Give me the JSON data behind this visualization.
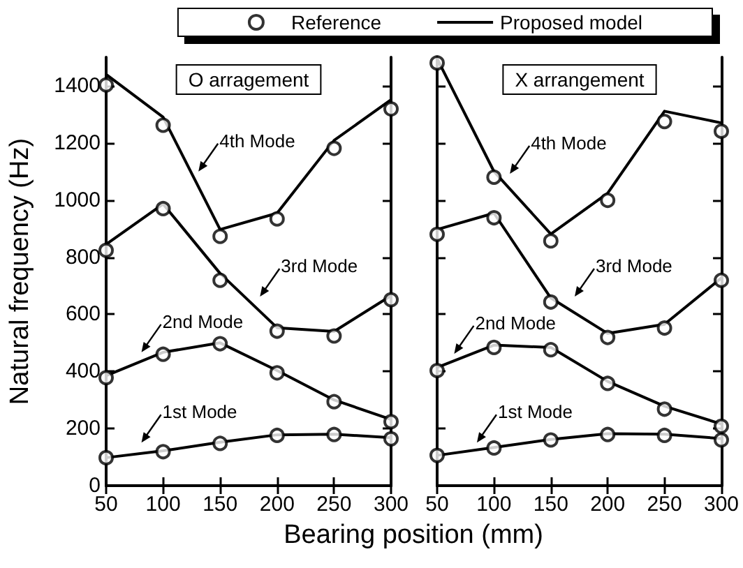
{
  "chart_data": [
    {
      "type": "line",
      "xlabel": "Bearing position (mm)",
      "ylabel": "Natural frequency (Hz)",
      "x": [
        50,
        100,
        150,
        200,
        250,
        300
      ],
      "xlim": [
        50,
        300
      ],
      "xticks": [
        50,
        100,
        150,
        200,
        250,
        300
      ],
      "ylim": [
        0,
        1500
      ],
      "yticks": [
        0,
        200,
        400,
        600,
        800,
        1000,
        1200,
        1400
      ],
      "grid": false,
      "legend": "top right",
      "annotations": [
        "O arragement",
        "4th Mode",
        "3rd Mode",
        "2nd Mode",
        "1st Mode"
      ],
      "series": [
        {
          "name": "Reference",
          "type": "scatter",
          "marker": "circle",
          "color": "#000000",
          "values": [
            98,
            119,
            148,
            176,
            179,
            164
          ]
        },
        {
          "name": "Proposed model",
          "marker": "none",
          "line_style": "solid",
          "color": "#000000",
          "values": [
            98,
            122,
            152,
            178,
            180,
            168
          ]
        },
        {
          "type": "scatter",
          "marker": "circle",
          "color": "#000000",
          "values": [
            378,
            460,
            497,
            395,
            294,
            224
          ]
        },
        {
          "marker": "none",
          "line_style": "solid",
          "color": "#000000",
          "values": [
            385,
            467,
            500,
            403,
            300,
            232
          ]
        },
        {
          "type": "scatter",
          "marker": "circle",
          "color": "#000000",
          "values": [
            824,
            970,
            719,
            541,
            524,
            651
          ]
        },
        {
          "marker": "none",
          "line_style": "solid",
          "color": "#000000",
          "values": [
            845,
            986,
            743,
            553,
            540,
            665
          ]
        },
        {
          "type": "scatter",
          "marker": "circle",
          "color": "#000000",
          "values": [
            1403,
            1262,
            873,
            934,
            1181,
            1319
          ]
        },
        {
          "marker": "none",
          "line_style": "solid",
          "color": "#000000",
          "values": [
            1440,
            1290,
            897,
            954,
            1209,
            1351
          ]
        }
      ]
    },
    {
      "type": "line",
      "x": [
        50,
        100,
        150,
        200,
        250,
        300
      ],
      "xlim": [
        50,
        300
      ],
      "xticks": [
        50,
        100,
        150,
        200,
        250,
        300
      ],
      "ylim": [
        0,
        1500
      ],
      "yticks": [
        0,
        200,
        400,
        600,
        800,
        1000,
        1200,
        1400
      ],
      "grid": false,
      "tick_labels": "x",
      "annotations": [
        "X arrangement",
        "4th Mode",
        "3rd Mode",
        "2nd Mode",
        "1st Mode"
      ],
      "series": [
        {
          "type": "scatter",
          "marker": "circle",
          "color": "#000000",
          "values": [
            106,
            132,
            160,
            179,
            176,
            160
          ]
        },
        {
          "marker": "none",
          "line_style": "solid",
          "color": "#000000",
          "values": [
            106,
            134,
            162,
            182,
            180,
            165
          ]
        },
        {
          "type": "scatter",
          "marker": "circle",
          "color": "#000000",
          "values": [
            403,
            484,
            476,
            358,
            268,
            208
          ]
        },
        {
          "marker": "none",
          "line_style": "solid",
          "color": "#000000",
          "values": [
            414,
            492,
            484,
            365,
            278,
            216
          ]
        },
        {
          "type": "scatter",
          "marker": "circle",
          "color": "#000000",
          "values": [
            880,
            938,
            643,
            519,
            552,
            719
          ]
        },
        {
          "marker": "none",
          "line_style": "solid",
          "color": "#000000",
          "values": [
            897,
            954,
            657,
            533,
            565,
            727
          ]
        },
        {
          "type": "scatter",
          "marker": "circle",
          "color": "#000000",
          "values": [
            1480,
            1080,
            857,
            999,
            1275,
            1241
          ]
        },
        {
          "marker": "none",
          "line_style": "solid",
          "color": "#000000",
          "values": [
            1495,
            1100,
            881,
            1024,
            1311,
            1270
          ]
        }
      ]
    }
  ]
}
